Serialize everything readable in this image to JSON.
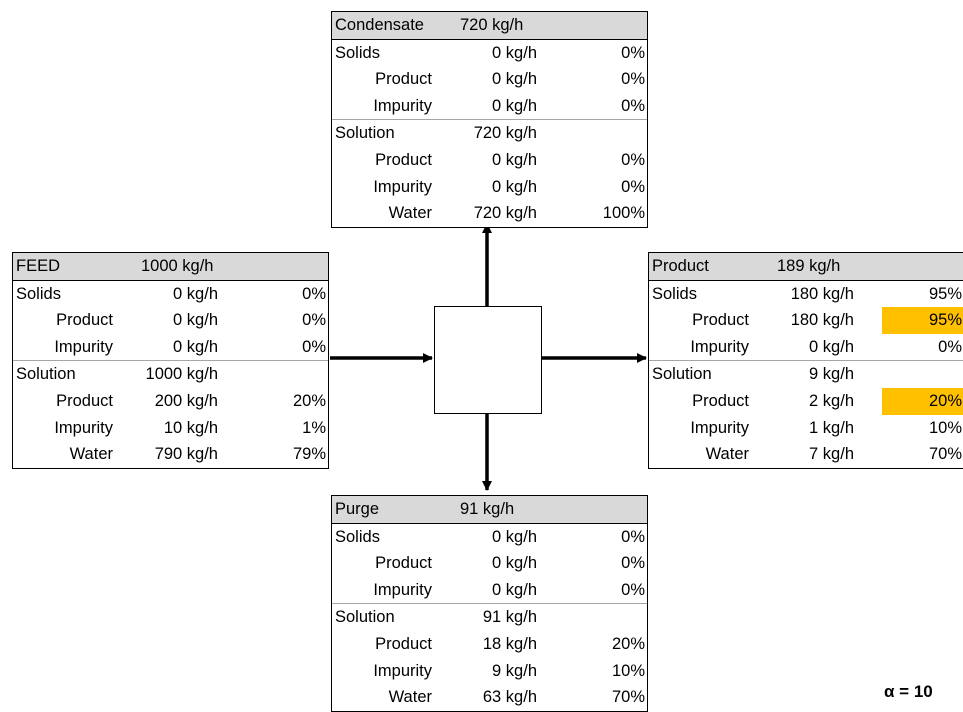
{
  "streams": {
    "condensate": {
      "name": "Condensate",
      "flow": "720 kg/h",
      "rows": [
        {
          "label": "Solids",
          "flow": "0 kg/h",
          "pct": "0%"
        },
        {
          "label": "Product",
          "flow": "0 kg/h",
          "pct": "0%"
        },
        {
          "label": "Impurity",
          "flow": "0 kg/h",
          "pct": "0%"
        },
        {
          "label": "Solution",
          "flow": "720 kg/h",
          "pct": ""
        },
        {
          "label": "Product",
          "flow": "0 kg/h",
          "pct": "0%"
        },
        {
          "label": "Impurity",
          "flow": "0 kg/h",
          "pct": "0%"
        },
        {
          "label": "Water",
          "flow": "720 kg/h",
          "pct": "100%"
        }
      ]
    },
    "feed": {
      "name": "FEED",
      "flow": "1000 kg/h",
      "rows": [
        {
          "label": "Solids",
          "flow": "0 kg/h",
          "pct": "0%"
        },
        {
          "label": "Product",
          "flow": "0 kg/h",
          "pct": "0%"
        },
        {
          "label": "Impurity",
          "flow": "0 kg/h",
          "pct": "0%"
        },
        {
          "label": "Solution",
          "flow": "1000 kg/h",
          "pct": ""
        },
        {
          "label": "Product",
          "flow": "200 kg/h",
          "pct": "20%"
        },
        {
          "label": "Impurity",
          "flow": "10 kg/h",
          "pct": "1%"
        },
        {
          "label": "Water",
          "flow": "790 kg/h",
          "pct": "79%"
        }
      ]
    },
    "product": {
      "name": "Product",
      "flow": "189 kg/h",
      "rows": [
        {
          "label": "Solids",
          "flow": "180 kg/h",
          "pct": "95%"
        },
        {
          "label": "Product",
          "flow": "180 kg/h",
          "pct": "95%"
        },
        {
          "label": "Impurity",
          "flow": "0 kg/h",
          "pct": "0%"
        },
        {
          "label": "Solution",
          "flow": "9 kg/h",
          "pct": ""
        },
        {
          "label": "Product",
          "flow": "2 kg/h",
          "pct": "20%"
        },
        {
          "label": "Impurity",
          "flow": "1 kg/h",
          "pct": "10%"
        },
        {
          "label": "Water",
          "flow": "7 kg/h",
          "pct": "70%"
        }
      ]
    },
    "purge": {
      "name": "Purge",
      "flow": "91 kg/h",
      "rows": [
        {
          "label": "Solids",
          "flow": "0 kg/h",
          "pct": "0%"
        },
        {
          "label": "Product",
          "flow": "0 kg/h",
          "pct": "0%"
        },
        {
          "label": "Impurity",
          "flow": "0 kg/h",
          "pct": "0%"
        },
        {
          "label": "Solution",
          "flow": "91 kg/h",
          "pct": ""
        },
        {
          "label": "Product",
          "flow": "18 kg/h",
          "pct": "20%"
        },
        {
          "label": "Impurity",
          "flow": "9 kg/h",
          "pct": "10%"
        },
        {
          "label": "Water",
          "flow": "63 kg/h",
          "pct": "70%"
        }
      ]
    }
  },
  "alpha_label": "α = 10",
  "colors": {
    "header_bg": "#d9d9d9",
    "highlight": "#ffc000",
    "arrow": "#000000"
  }
}
